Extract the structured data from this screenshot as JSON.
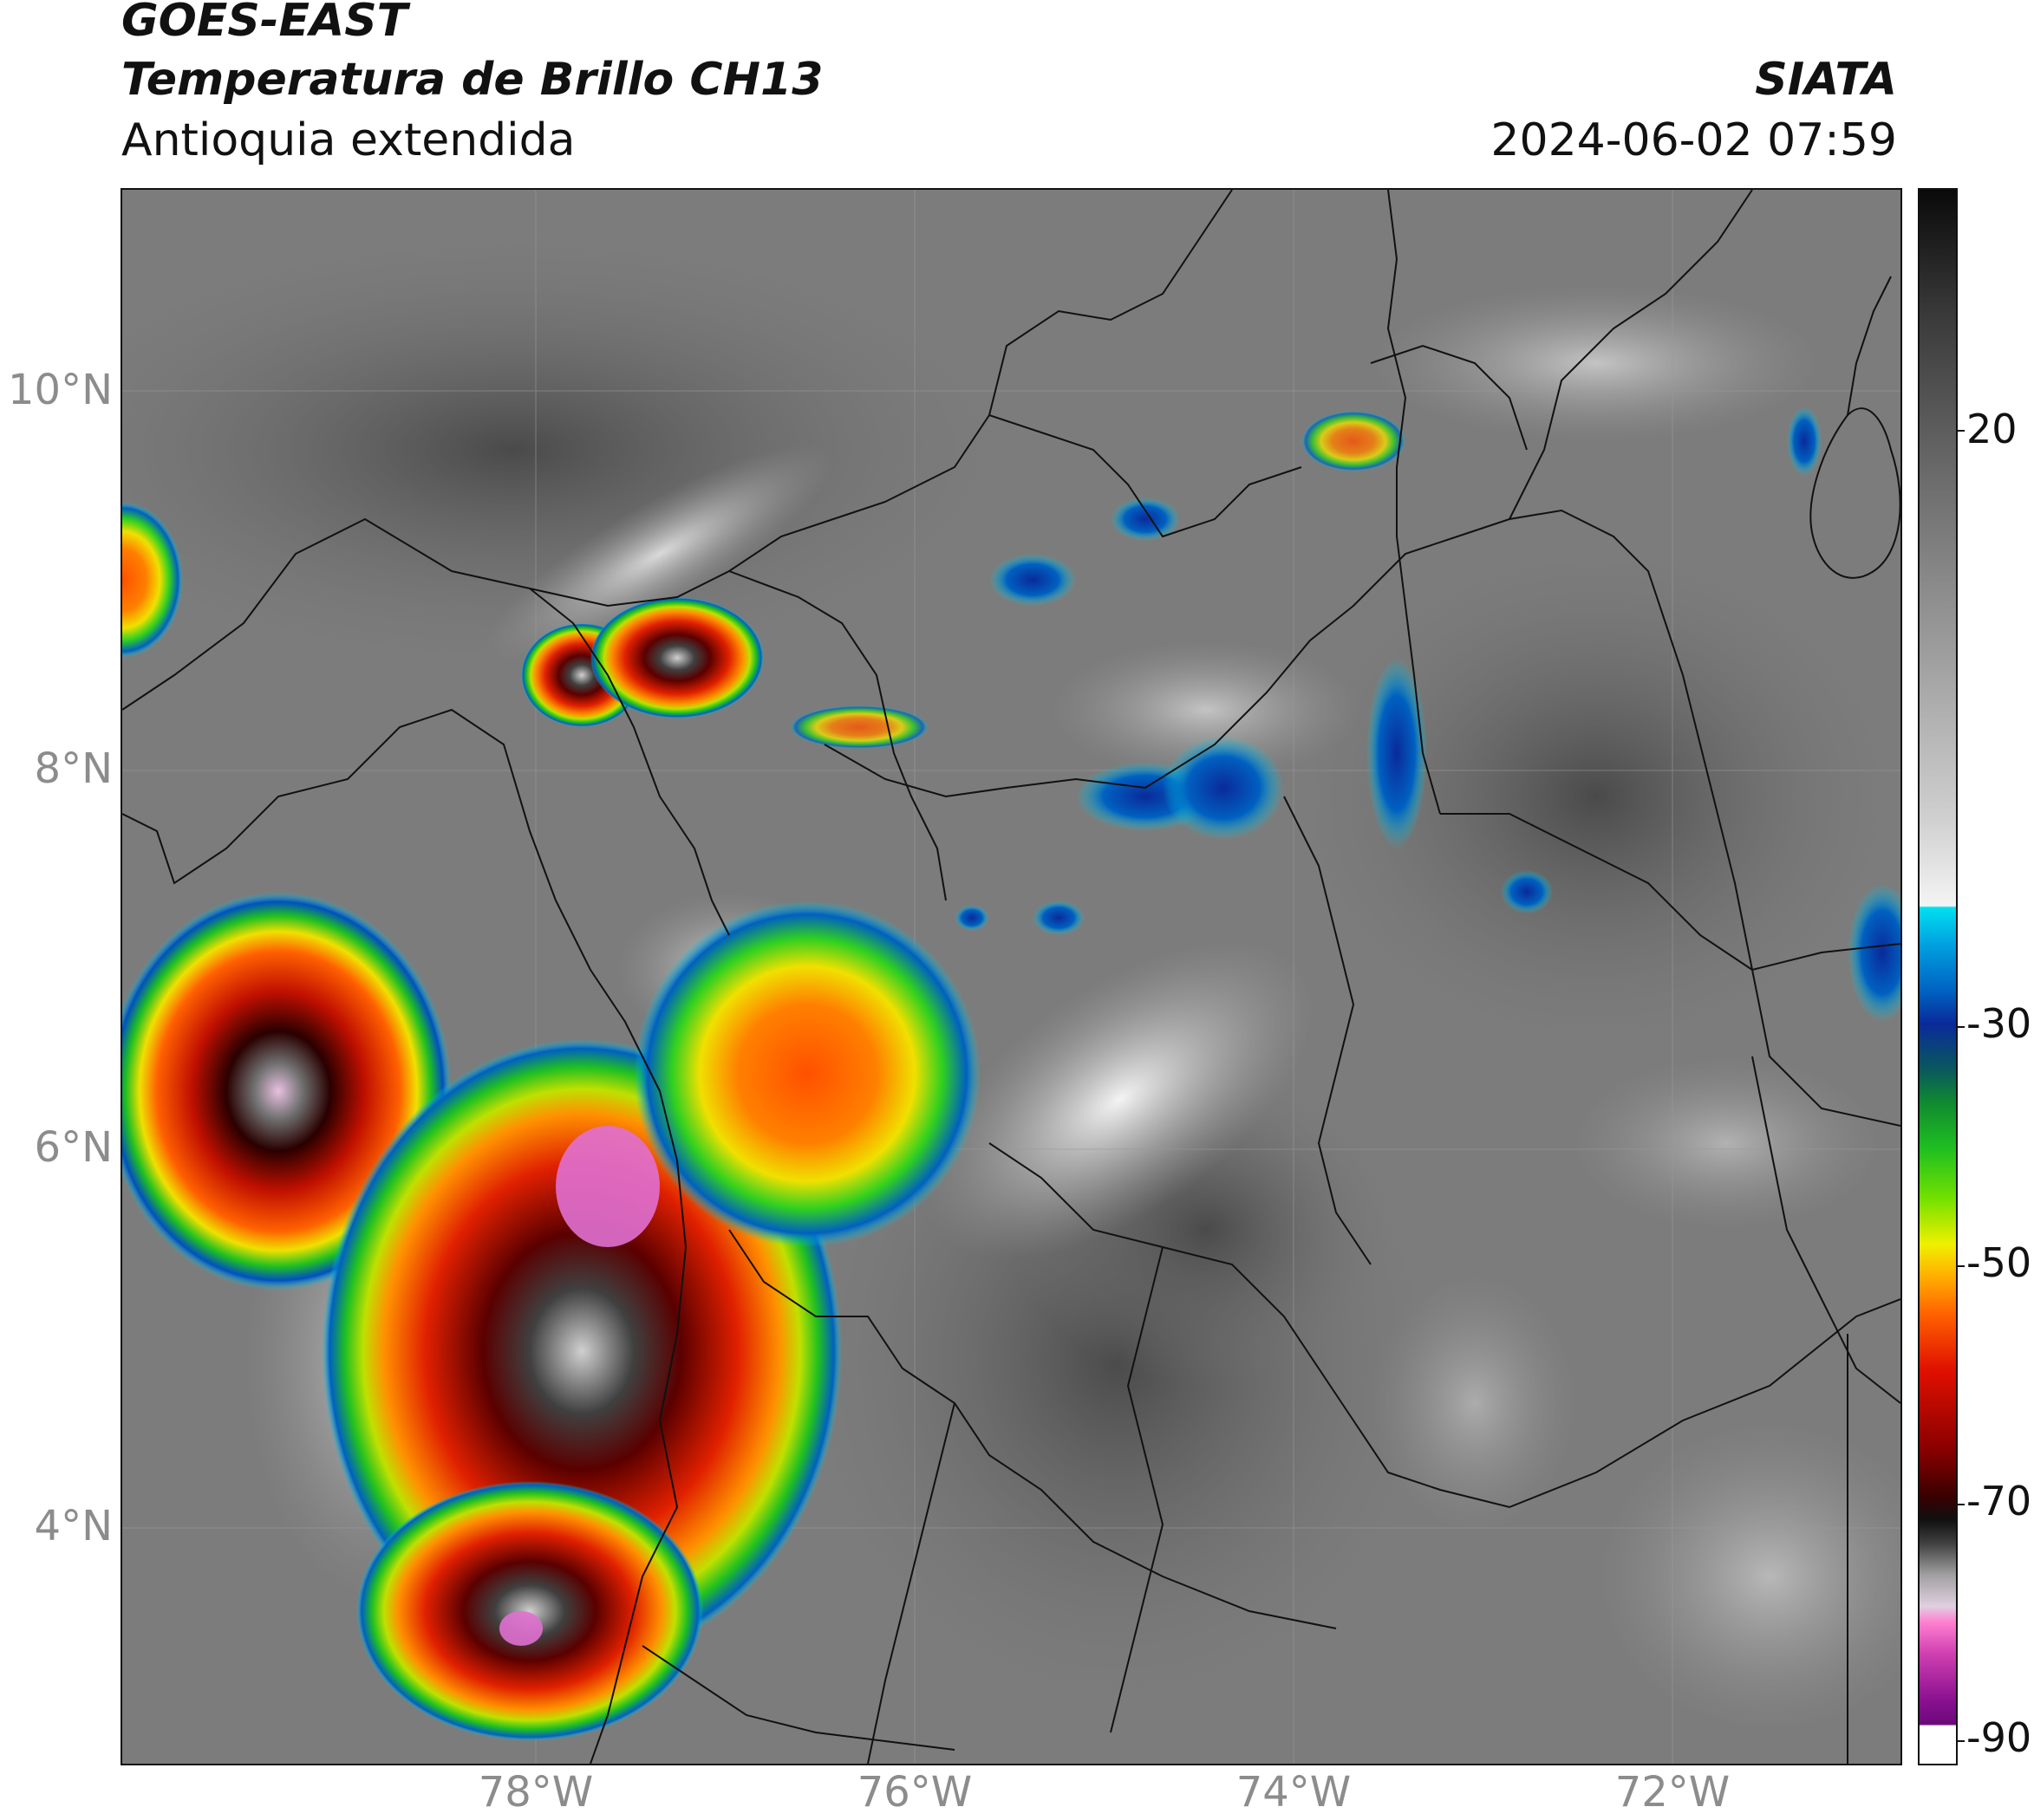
{
  "header": {
    "satellite": "GOES-EAST",
    "product": "Temperatura de Brillo CH13",
    "region": "Antioquia extendida",
    "agency": "SIATA",
    "datetime": "2024-06-02 07:59"
  },
  "axes": {
    "lat_labels": [
      "10°N",
      "8°N",
      "6°N",
      "4°N"
    ],
    "lon_labels": [
      "78°W",
      "76°W",
      "74°W",
      "72°W"
    ]
  },
  "colorbar": {
    "tick_labels": [
      "20",
      "-30",
      "-50",
      "-70",
      "-90"
    ],
    "colors": {
      "warm_gray_dark": "#1a1a1a",
      "warm_gray_light": "#f0f0f0",
      "cyan": "#00d0e8",
      "blue": "#0a2a9a",
      "green": "#20c020",
      "yellow": "#f0e000",
      "orange": "#ff8000",
      "red": "#e01000",
      "dark_red": "#5a0000",
      "black": "#101010",
      "pink": "#e060c0",
      "purple": "#6a0a7a",
      "white": "#ffffff"
    }
  }
}
